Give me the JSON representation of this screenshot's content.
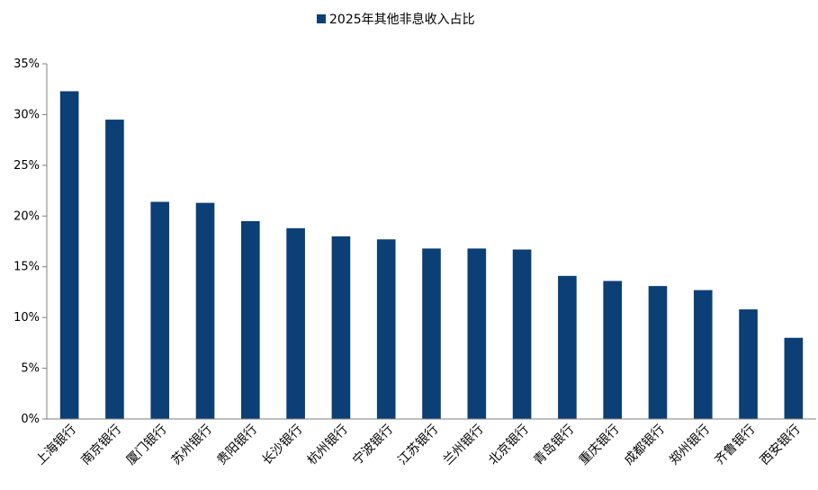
{
  "chart_data": {
    "type": "bar",
    "legend": {
      "position": "top-center"
    },
    "colors": {
      "bar": "#0b3f75",
      "axis": "#7f7f7f"
    },
    "categories": [
      "上海银行",
      "南京银行",
      "厦门银行",
      "苏州银行",
      "贵阳银行",
      "长沙银行",
      "杭州银行",
      "宁波银行",
      "江苏银行",
      "兰州银行",
      "北京银行",
      "青岛银行",
      "重庆银行",
      "成都银行",
      "郑州银行",
      "齐鲁银行",
      "西安银行"
    ],
    "series": [
      {
        "name": "2025年其他非息收入占比",
        "values": [
          0.323,
          0.295,
          0.214,
          0.213,
          0.195,
          0.188,
          0.18,
          0.177,
          0.168,
          0.168,
          0.167,
          0.141,
          0.136,
          0.131,
          0.127,
          0.108,
          0.08
        ]
      }
    ],
    "ylim": [
      0,
      0.35
    ],
    "yticks": [
      {
        "value": 0.0,
        "label": "0%"
      },
      {
        "value": 0.05,
        "label": "5%"
      },
      {
        "value": 0.1,
        "label": "10%"
      },
      {
        "value": 0.15,
        "label": "15%"
      },
      {
        "value": 0.2,
        "label": "20%"
      },
      {
        "value": 0.25,
        "label": "25%"
      },
      {
        "value": 0.3,
        "label": "30%"
      },
      {
        "value": 0.35,
        "label": "35%"
      }
    ],
    "grid": false
  }
}
